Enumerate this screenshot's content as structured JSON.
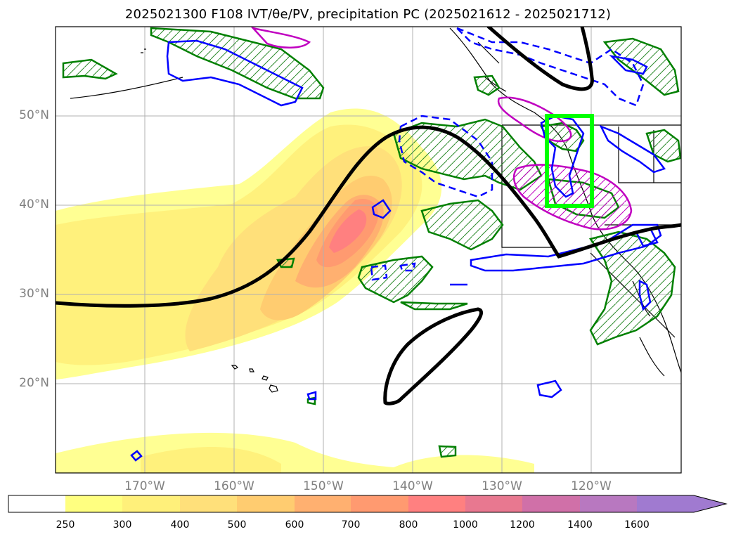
{
  "title": "2025021300 F108 IVT/θe/PV, precipitation PC (2025021612 - 2025021712)",
  "map": {
    "lat_labels": [
      "50°N",
      "40°N",
      "30°N",
      "20°N"
    ],
    "lon_labels": [
      "170°W",
      "160°W",
      "150°W",
      "140°W",
      "130°W",
      "120°W"
    ],
    "highlight_box_color": "#00ff00",
    "pv_contour_color": "#000000",
    "precip_contour_color": "#0000ff",
    "hatch_contour_color": "#008000",
    "magenta_contour_color": "#c000c0"
  },
  "colorbar": {
    "ticks": [
      "250",
      "300",
      "400",
      "500",
      "600",
      "700",
      "800",
      "1000",
      "1200",
      "1400",
      "1600"
    ],
    "colors": [
      "#ffffff",
      "#ffff80",
      "#fff07a",
      "#ffe07a",
      "#ffcc70",
      "#ffb070",
      "#ff9a70",
      "#ff8080",
      "#e87890",
      "#d070a8",
      "#b878c0",
      "#a07ad0"
    ]
  }
}
